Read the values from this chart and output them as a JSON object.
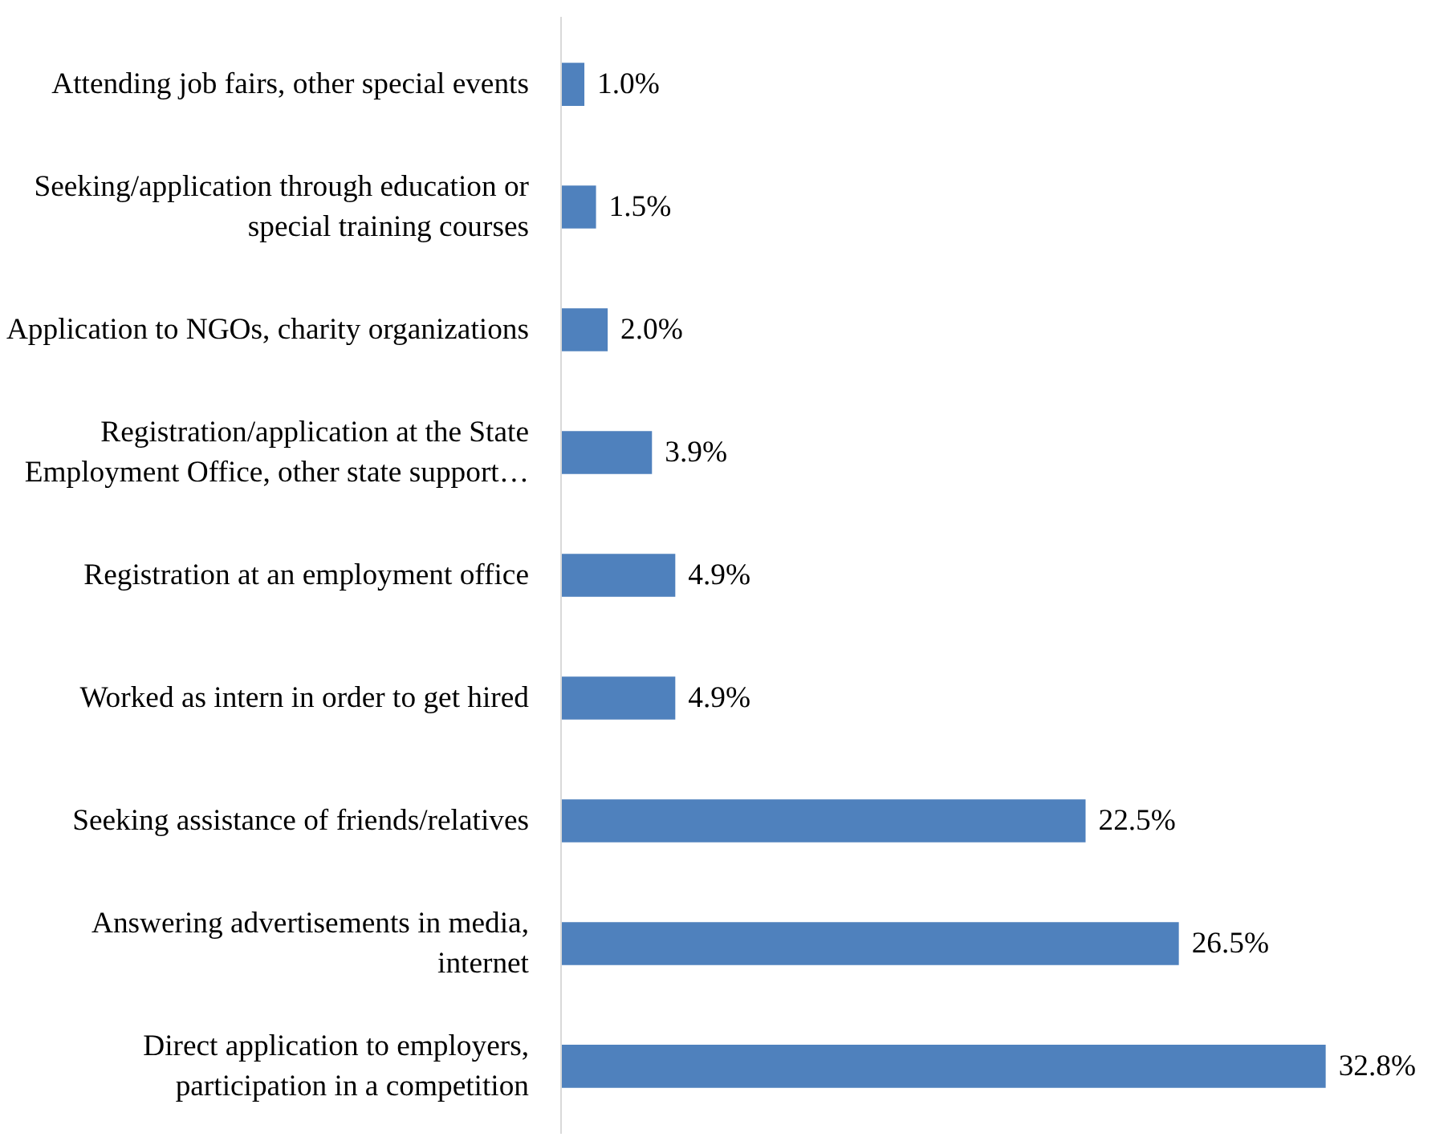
{
  "chart_data": {
    "type": "bar",
    "orientation": "horizontal",
    "categories": [
      "Attending job fairs, other special events",
      "Seeking/application through education or\nspecial training courses",
      "Application to NGOs, charity organizations",
      "Registration/application at the State\nEmployment Office, other state support…",
      "Registration at an employment office",
      "Worked as intern in order to get hired",
      "Seeking assistance of friends/relatives",
      "Answering advertisements in media,\ninternet",
      "Direct application to employers,\nparticipation in a competition"
    ],
    "values": [
      1.0,
      1.5,
      2.0,
      3.9,
      4.9,
      4.9,
      22.5,
      26.5,
      32.8
    ],
    "value_labels": [
      "1.0%",
      "1.5%",
      "2.0%",
      "3.9%",
      "4.9%",
      "4.9%",
      "22.5%",
      "26.5%",
      "32.8%"
    ],
    "color": "#4f81bd"
  }
}
